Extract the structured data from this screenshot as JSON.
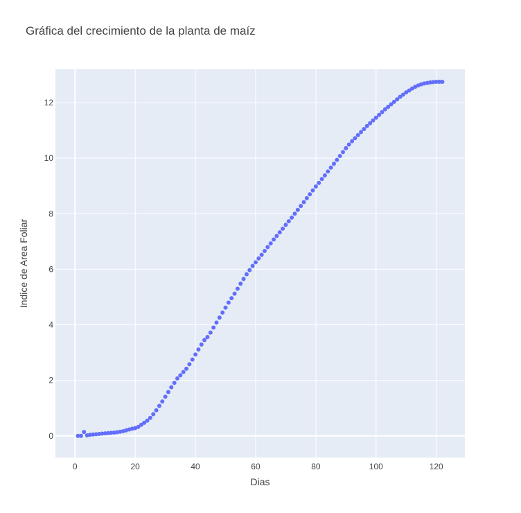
{
  "chart_data": {
    "type": "scatter",
    "title": "Gráfica del crecimiento de la planta de maíz",
    "xlabel": "Dias",
    "ylabel": "Indice de Area Foliar",
    "xlim": [
      -6.5,
      129.5
    ],
    "ylim": [
      -0.78,
      13.2
    ],
    "xticks": [
      0,
      20,
      40,
      60,
      80,
      100,
      120
    ],
    "yticks": [
      0,
      2,
      4,
      6,
      8,
      10,
      12
    ],
    "grid": true,
    "plot_background": "#e5ecf6",
    "grid_color": "#ffffff",
    "marker_color": "#636efa",
    "x": [
      1,
      2,
      3,
      4,
      5,
      6,
      7,
      8,
      9,
      10,
      11,
      12,
      13,
      14,
      15,
      16,
      17,
      18,
      19,
      20,
      21,
      22,
      23,
      24,
      25,
      26,
      27,
      28,
      29,
      30,
      31,
      32,
      33,
      34,
      35,
      36,
      37,
      38,
      39,
      40,
      41,
      42,
      43,
      44,
      45,
      46,
      47,
      48,
      49,
      50,
      51,
      52,
      53,
      54,
      55,
      56,
      57,
      58,
      59,
      60,
      61,
      62,
      63,
      64,
      65,
      66,
      67,
      68,
      69,
      70,
      71,
      72,
      73,
      74,
      75,
      76,
      77,
      78,
      79,
      80,
      81,
      82,
      83,
      84,
      85,
      86,
      87,
      88,
      89,
      90,
      91,
      92,
      93,
      94,
      95,
      96,
      97,
      98,
      99,
      100,
      101,
      102,
      103,
      104,
      105,
      106,
      107,
      108,
      109,
      110,
      111,
      112,
      113,
      114,
      115,
      116,
      117,
      118,
      119,
      120,
      121,
      122
    ],
    "y": [
      0.0,
      0.0,
      0.14,
      0.02,
      0.04,
      0.05,
      0.06,
      0.07,
      0.08,
      0.09,
      0.1,
      0.11,
      0.12,
      0.13,
      0.15,
      0.17,
      0.2,
      0.23,
      0.26,
      0.28,
      0.32,
      0.4,
      0.47,
      0.55,
      0.65,
      0.78,
      0.92,
      1.08,
      1.24,
      1.41,
      1.58,
      1.75,
      1.91,
      2.07,
      2.18,
      2.3,
      2.42,
      2.58,
      2.75,
      2.93,
      3.11,
      3.29,
      3.45,
      3.56,
      3.72,
      3.9,
      4.08,
      4.26,
      4.44,
      4.62,
      4.8,
      4.96,
      5.12,
      5.3,
      5.48,
      5.65,
      5.82,
      5.97,
      6.12,
      6.25,
      6.39,
      6.52,
      6.66,
      6.8,
      6.93,
      7.07,
      7.2,
      7.33,
      7.46,
      7.6,
      7.73,
      7.86,
      8.0,
      8.14,
      8.28,
      8.42,
      8.56,
      8.7,
      8.84,
      8.98,
      9.11,
      9.25,
      9.38,
      9.52,
      9.66,
      9.8,
      9.94,
      10.08,
      10.22,
      10.36,
      10.49,
      10.61,
      10.72,
      10.83,
      10.94,
      11.05,
      11.16,
      11.26,
      11.36,
      11.46,
      11.56,
      11.66,
      11.76,
      11.85,
      11.94,
      12.03,
      12.12,
      12.21,
      12.29,
      12.37,
      12.44,
      12.51,
      12.57,
      12.62,
      12.66,
      12.69,
      12.71,
      12.73,
      12.74,
      12.75,
      12.75,
      12.75
    ]
  }
}
